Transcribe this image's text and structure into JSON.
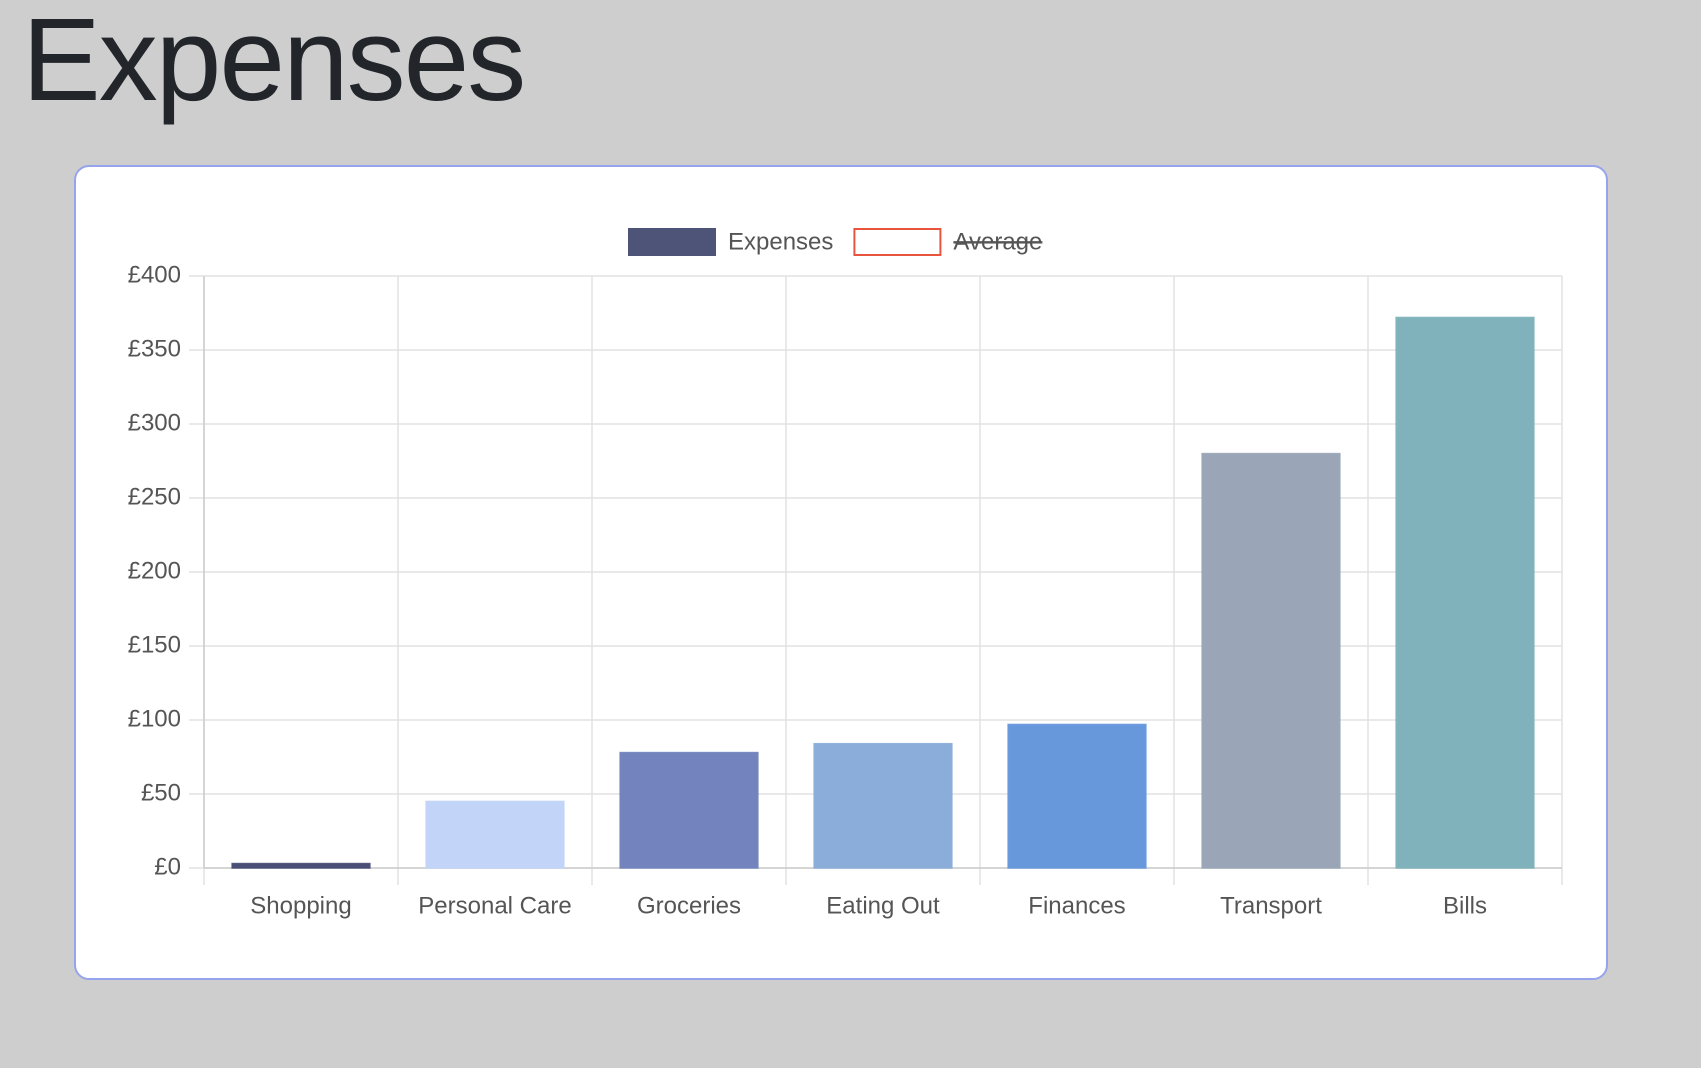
{
  "page_title": "Expenses",
  "chart_data": {
    "type": "bar",
    "categories": [
      "Shopping",
      "Personal Care",
      "Groceries",
      "Eating Out",
      "Finances",
      "Transport",
      "Bills"
    ],
    "series": [
      {
        "name": "Expenses",
        "color": "#4e5378",
        "colors": [
          "#4a4f75",
          "#c2d4f7",
          "#7283bd",
          "#8aadd9",
          "#6898dc",
          "#9aa6b8",
          "#80b2bb"
        ],
        "values": [
          3,
          45,
          78,
          84,
          97,
          280,
          372
        ]
      },
      {
        "name": "Average",
        "color": "#e8553f",
        "hidden": true
      }
    ],
    "ylim": [
      0,
      400
    ],
    "yticks": [
      {
        "value": 0,
        "label": "£0"
      },
      {
        "value": 50,
        "label": "£50"
      },
      {
        "value": 100,
        "label": "£100"
      },
      {
        "value": 150,
        "label": "£150"
      },
      {
        "value": 200,
        "label": "£200"
      },
      {
        "value": 250,
        "label": "£250"
      },
      {
        "value": 300,
        "label": "£300"
      },
      {
        "value": 350,
        "label": "£350"
      },
      {
        "value": 400,
        "label": "£400"
      }
    ],
    "grid": true,
    "legend": "top"
  }
}
